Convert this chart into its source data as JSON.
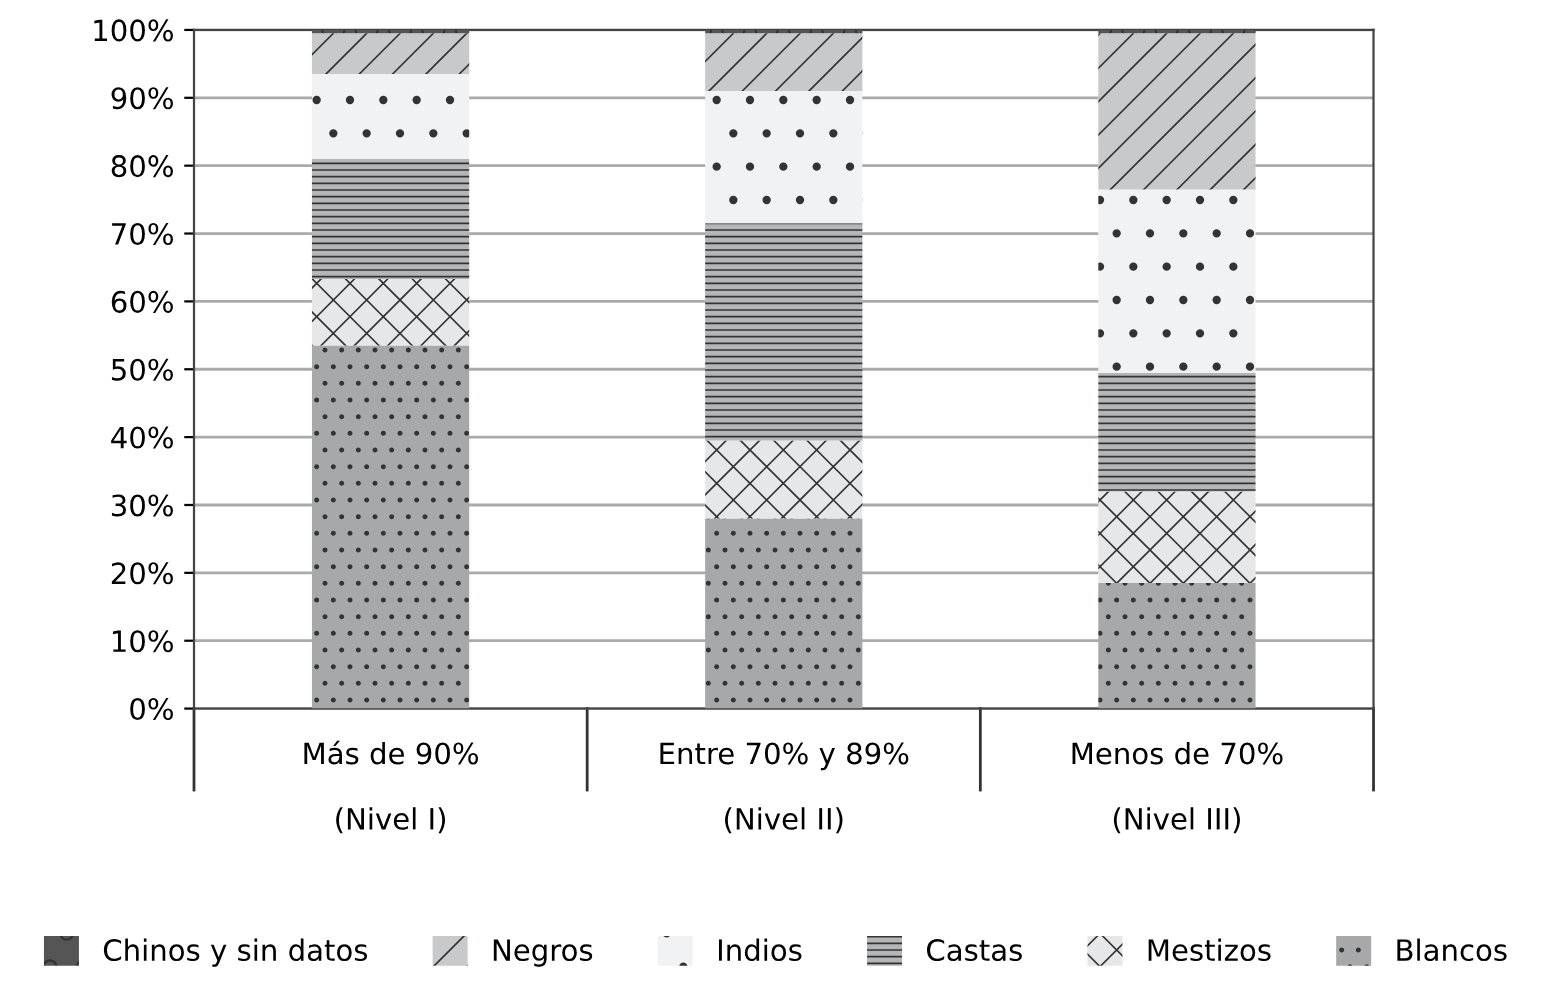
{
  "chart_data": {
    "type": "bar",
    "stacked": true,
    "categories": [
      "Más de 90%\n\n(Nivel I)",
      "Entre 70% y 89%\n\n(Nivel II)",
      "Menos de 70%\n\n(Nivel III)"
    ],
    "series": [
      {
        "name": "Blancos",
        "color": "#a7a8aa",
        "values": [
          53.5,
          28,
          18.5
        ]
      },
      {
        "name": "Mestizos",
        "color": "#e6e7e8",
        "values": [
          9.8,
          11.5,
          13.5
        ]
      },
      {
        "name": "Castas",
        "color": "#b5b6b8",
        "values": [
          17.7,
          32,
          17.5
        ]
      },
      {
        "name": "Indios",
        "color": "#f1f2f3",
        "values": [
          12.5,
          19.5,
          27
        ]
      },
      {
        "name": "Negros",
        "color": "#c8c9ca",
        "values": [
          6,
          8.5,
          23
        ]
      },
      {
        "name": "Chinos y sin datos",
        "color": "#555555",
        "values": [
          0.5,
          0.5,
          0.5
        ]
      }
    ],
    "ylim": [
      0,
      100
    ],
    "yticks": [
      {
        "value": 0,
        "label": "0%"
      },
      {
        "value": 10,
        "label": "10%"
      },
      {
        "value": 20,
        "label": "20%"
      },
      {
        "value": 30,
        "label": "30%"
      },
      {
        "value": 40,
        "label": "40%"
      },
      {
        "value": 50,
        "label": "50%"
      },
      {
        "value": 60,
        "label": "60%"
      },
      {
        "value": 70,
        "label": "70%"
      },
      {
        "value": 80,
        "label": "80%"
      },
      {
        "value": 90,
        "label": "90%"
      },
      {
        "value": 100,
        "label": "100%"
      }
    ],
    "grid": "y",
    "legend": "bottom"
  }
}
